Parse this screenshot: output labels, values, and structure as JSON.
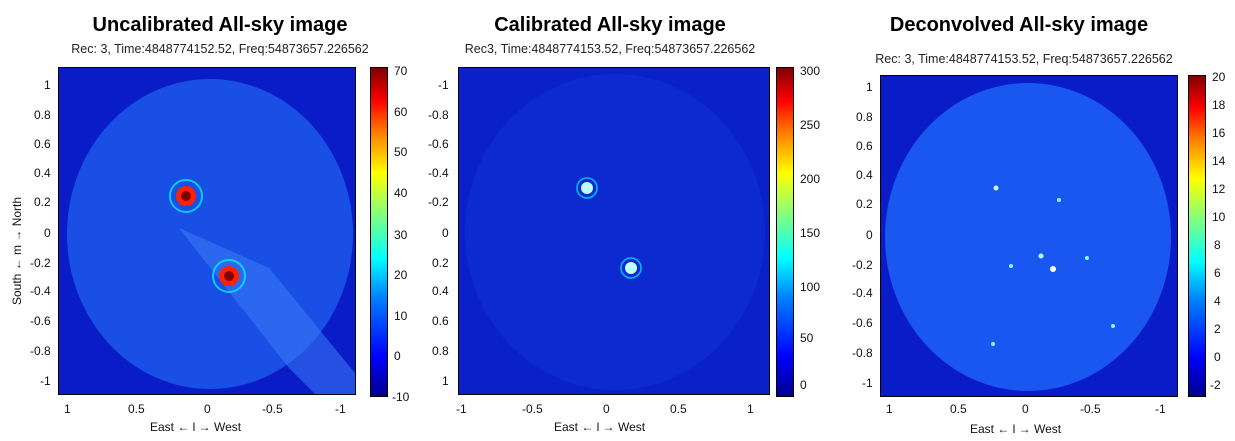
{
  "panels": [
    {
      "title": "Uncalibrated All-sky image",
      "subtitle": "Rec: 3, Time:4848774152.52, Freq:54873657.226562",
      "xlabel": "East ← l → West",
      "ylabel": "South ← m → North",
      "xticks": [
        "1",
        "0.5",
        "0",
        "-0.5",
        "-1"
      ],
      "yticks": [
        "1",
        "0.8",
        "0.6",
        "0.4",
        "0.2",
        "0",
        "-0.2",
        "-0.4",
        "-0.6",
        "-0.8",
        "-1"
      ],
      "cbar_ticks": [
        "70",
        "60",
        "50",
        "40",
        "30",
        "20",
        "10",
        "0",
        "-10"
      ],
      "disk_color": "#1a4fe6",
      "bg_color": "#0a1cc8"
    },
    {
      "title": "Calibrated All-sky image",
      "subtitle": "Rec3, Time:4848774153.52, Freq:54873657.226562",
      "xlabel": "East ← l → West",
      "ylabel": "",
      "xticks": [
        "-1",
        "-0.5",
        "0",
        "0.5",
        "1"
      ],
      "yticks": [
        "-1",
        "-0.8",
        "-0.6",
        "-0.4",
        "-0.2",
        "0",
        "0.2",
        "0.4",
        "0.6",
        "0.8",
        "1"
      ],
      "cbar_ticks": [
        "300",
        "250",
        "200",
        "150",
        "100",
        "50",
        "0"
      ],
      "disk_color": "#0d2ad0",
      "bg_color": "#0a20c8"
    },
    {
      "title": "Deconvolved All-sky image",
      "subtitle": "Rec: 3, Time:4848774153.52, Freq:54873657.226562",
      "xlabel": "East ← l → West",
      "ylabel": "",
      "xticks": [
        "1",
        "0.5",
        "0",
        "-0.5",
        "-1"
      ],
      "yticks": [
        "1",
        "0.8",
        "0.6",
        "0.4",
        "0.2",
        "0",
        "-0.2",
        "-0.4",
        "-0.6",
        "-0.8",
        "-1"
      ],
      "cbar_ticks": [
        "20",
        "18",
        "16",
        "14",
        "12",
        "10",
        "8",
        "6",
        "4",
        "2",
        "0",
        "-2"
      ],
      "disk_color": "#1a56f0",
      "bg_color": "#0a1cc8"
    }
  ]
}
